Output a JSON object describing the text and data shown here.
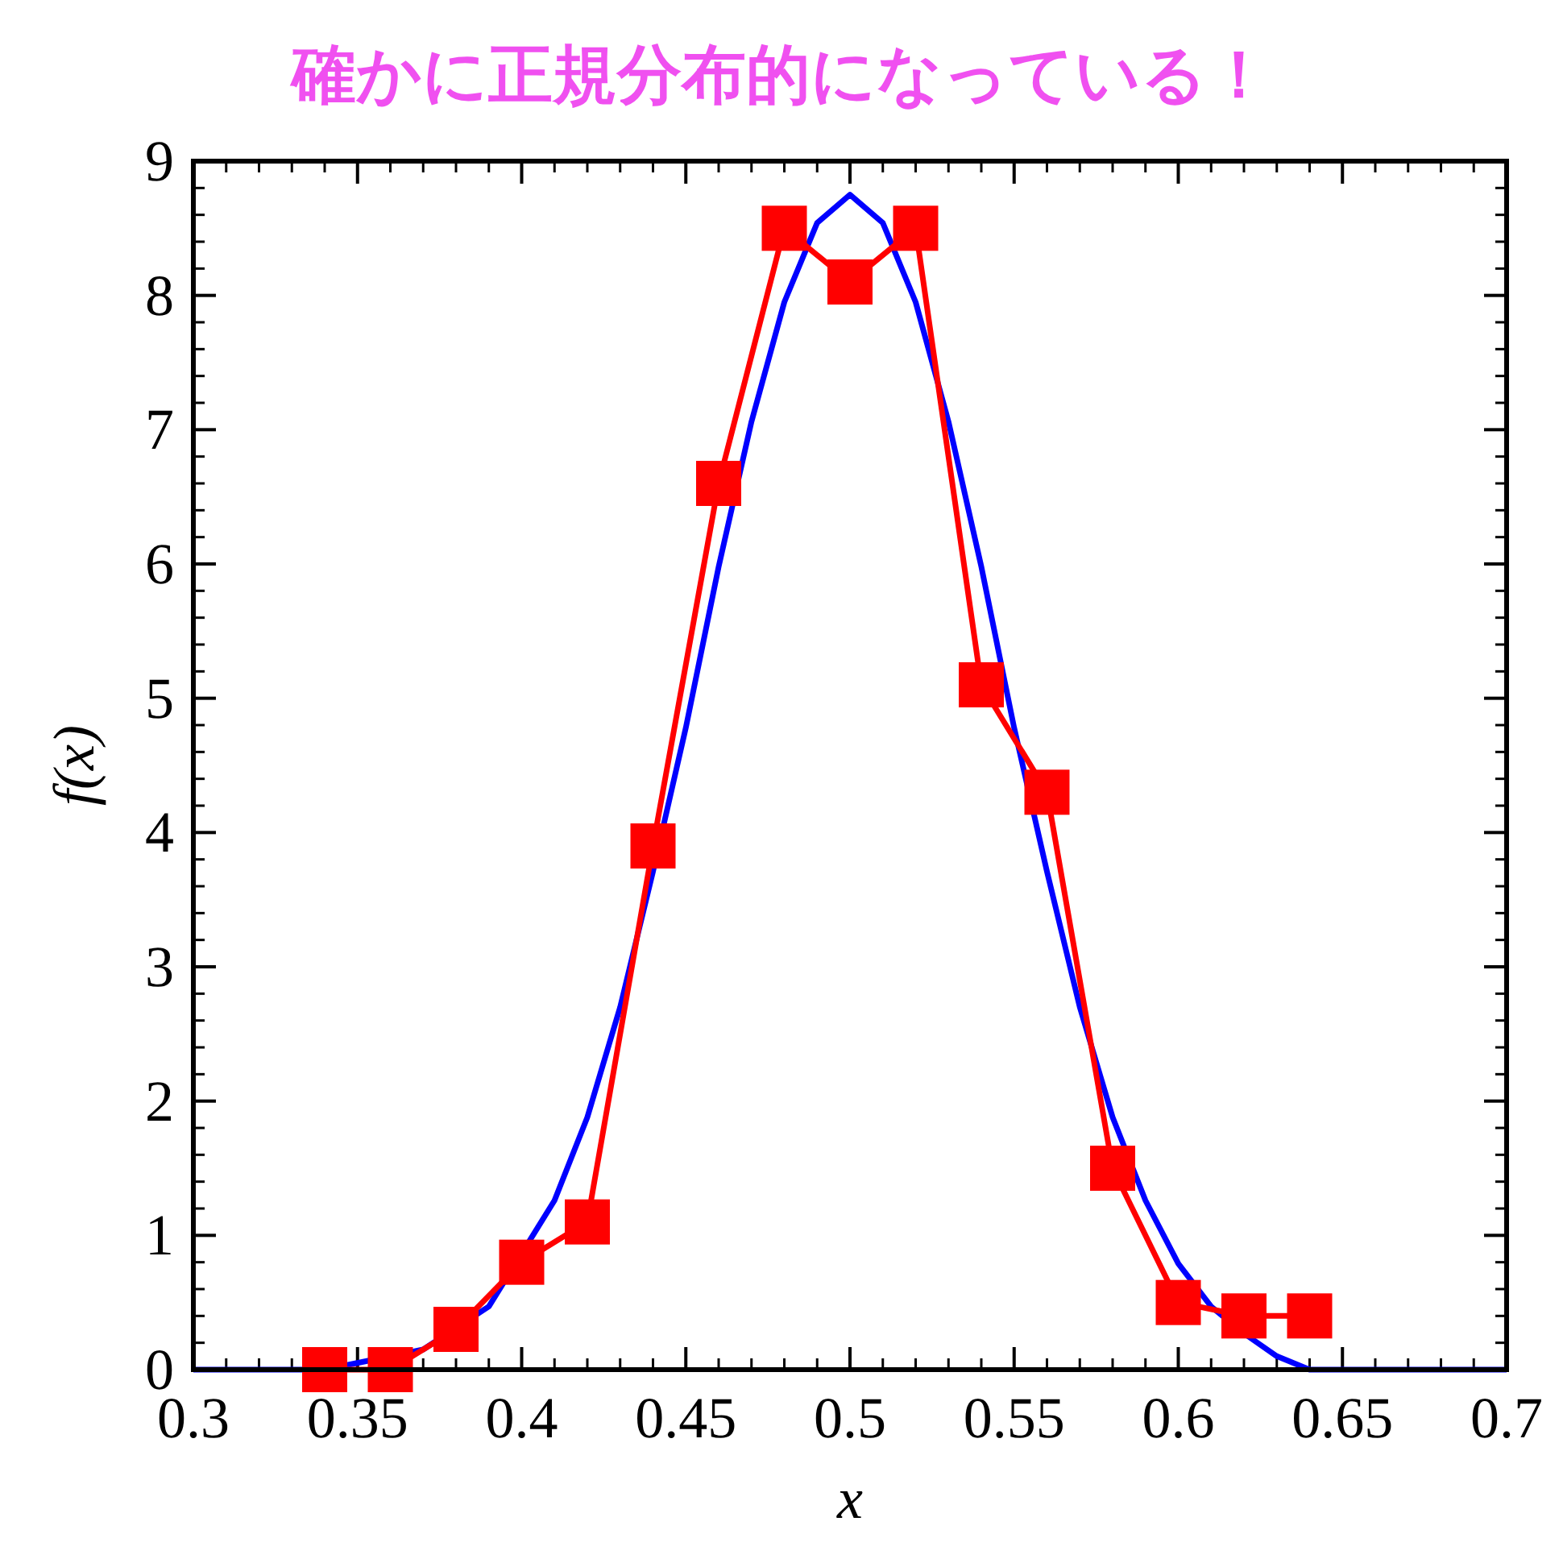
{
  "chart_data": {
    "type": "line",
    "xlabel": "x",
    "ylabel": "f(x)",
    "annotations": [
      "確かに正規分布的になっている！"
    ],
    "xlim": [
      0.3,
      0.7
    ],
    "ylim": [
      0,
      9
    ],
    "xticks": [
      0.3,
      0.35,
      0.4,
      0.45,
      0.5,
      0.55,
      0.6,
      0.65,
      0.7
    ],
    "yticks": [
      0,
      1,
      2,
      3,
      4,
      5,
      6,
      7,
      8,
      9
    ],
    "grid": false,
    "series": [
      {
        "color": "#0000ff",
        "marker": "none",
        "x": [
          0.3,
          0.34,
          0.37,
          0.39,
          0.41,
          0.42,
          0.43,
          0.44,
          0.45,
          0.46,
          0.47,
          0.48,
          0.49,
          0.5,
          0.51,
          0.52,
          0.53,
          0.54,
          0.55,
          0.56,
          0.57,
          0.58,
          0.59,
          0.6,
          0.61,
          0.62,
          0.63,
          0.64,
          0.66,
          0.7
        ],
        "values": [
          0,
          0,
          0.15,
          0.47,
          1.26,
          1.88,
          2.7,
          3.71,
          4.78,
          5.98,
          7.06,
          7.95,
          8.54,
          8.75,
          8.54,
          7.95,
          7.06,
          5.98,
          4.78,
          3.71,
          2.7,
          1.88,
          1.26,
          0.79,
          0.47,
          0.27,
          0.1,
          0,
          0,
          0
        ]
      },
      {
        "color": "#ff0000",
        "marker": "square",
        "x": [
          0.34,
          0.36,
          0.38,
          0.4,
          0.42,
          0.44,
          0.46,
          0.48,
          0.5,
          0.52,
          0.54,
          0.56,
          0.58,
          0.6,
          0.62,
          0.64
        ],
        "values": [
          0,
          0,
          0.3,
          0.8,
          1.1,
          3.9,
          6.6,
          8.5,
          8.1,
          8.5,
          5.1,
          4.3,
          1.5,
          0.5,
          0.4,
          0.4
        ]
      }
    ]
  }
}
